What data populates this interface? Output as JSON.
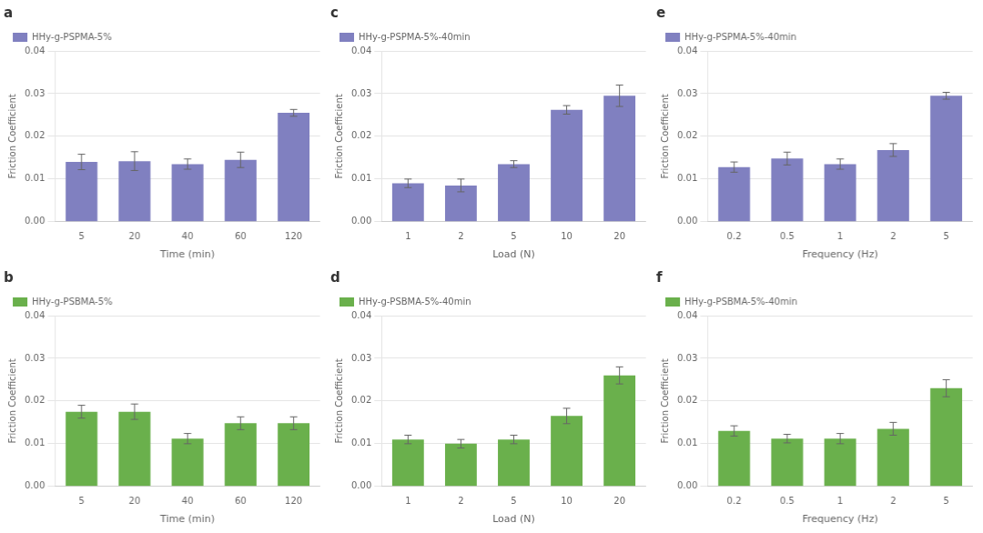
{
  "chart_data": [
    {
      "type": "bar",
      "title": "a",
      "xlabel": "Time (min)",
      "ylabel": "Friction Coefficient",
      "categories": [
        "5",
        "20",
        "40",
        "60",
        "120"
      ],
      "series": [
        {
          "name": "HHy-g-PSPMA-5%",
          "color": "#8080c0",
          "values": [
            0.014,
            0.0142,
            0.0135,
            0.0145,
            0.0255
          ],
          "errors": [
            0.0018,
            0.0022,
            0.0012,
            0.0018,
            0.0008
          ]
        }
      ],
      "ylim": [
        0,
        0.04
      ],
      "yticks": [
        {
          "value": 0,
          "label": "0.00"
        },
        0.01,
        0.02,
        0.03,
        0.04
      ],
      "grid": true,
      "legend": "upper left"
    },
    {
      "type": "bar",
      "title": "c",
      "xlabel": "Load (N)",
      "ylabel": "Friction Coefficient",
      "categories": [
        "1",
        "2",
        "5",
        "10",
        "20"
      ],
      "series": [
        {
          "name": "HHy-g-PSPMA-5%-40min",
          "color": "#8080c0",
          "values": [
            0.009,
            0.0085,
            0.0135,
            0.0262,
            0.0295
          ],
          "errors": [
            0.001,
            0.0015,
            0.0008,
            0.001,
            0.0025
          ]
        }
      ],
      "ylim": [
        0,
        0.04
      ],
      "yticks": [
        {
          "value": 0,
          "label": "0.00"
        },
        0.01,
        0.02,
        0.03,
        0.04
      ],
      "grid": true,
      "legend": "upper left"
    },
    {
      "type": "bar",
      "title": "e",
      "xlabel": "Frequency (Hz)",
      "ylabel": "Friction Coefficient",
      "categories": [
        "0.2",
        "0.5",
        "1",
        "2",
        "5"
      ],
      "series": [
        {
          "name": "HHy-g-PSPMA-5%-40min",
          "color": "#8080c0",
          "values": [
            0.0128,
            0.0148,
            0.0135,
            0.0168,
            0.0295
          ],
          "errors": [
            0.0012,
            0.0015,
            0.0012,
            0.0015,
            0.0008
          ]
        }
      ],
      "ylim": [
        0,
        0.04
      ],
      "yticks": [
        {
          "value": 0,
          "label": "0.00"
        },
        0.01,
        0.02,
        0.03,
        0.04
      ],
      "grid": true,
      "legend": "upper left"
    },
    {
      "type": "bar",
      "title": "b",
      "xlabel": "Time (min)",
      "ylabel": "Friction Coefficient",
      "categories": [
        "5",
        "20",
        "40",
        "60",
        "120"
      ],
      "series": [
        {
          "name": "HHy-g-PSBMA-5%",
          "color": "#6ab04c",
          "values": [
            0.0175,
            0.0175,
            0.0112,
            0.0148,
            0.0148
          ],
          "errors": [
            0.0015,
            0.0018,
            0.0012,
            0.0015,
            0.0015
          ]
        }
      ],
      "ylim": [
        0,
        0.04
      ],
      "yticks": [
        {
          "value": 0,
          "label": "0.00"
        },
        0.01,
        0.02,
        0.03,
        0.04
      ],
      "grid": true,
      "legend": "upper left"
    },
    {
      "type": "bar",
      "title": "d",
      "xlabel": "Load (N)",
      "ylabel": "Friction Coefficient",
      "categories": [
        "1",
        "2",
        "5",
        "10",
        "20"
      ],
      "series": [
        {
          "name": "HHy-g-PSBMA-5%-40min",
          "color": "#6ab04c",
          "values": [
            0.011,
            0.01,
            0.011,
            0.0165,
            0.026
          ],
          "errors": [
            0.001,
            0.001,
            0.001,
            0.0018,
            0.002
          ]
        }
      ],
      "ylim": [
        0,
        0.04
      ],
      "yticks": [
        {
          "value": 0,
          "label": "0.00"
        },
        0.01,
        0.02,
        0.03,
        0.04
      ],
      "grid": true,
      "legend": "upper left"
    },
    {
      "type": "bar",
      "title": "f",
      "xlabel": "Frequency (Hz)",
      "ylabel": "Friction Coefficient",
      "categories": [
        "0.2",
        "0.5",
        "1",
        "2",
        "5"
      ],
      "series": [
        {
          "name": "HHy-g-PSBMA-5%-40min",
          "color": "#6ab04c",
          "values": [
            0.013,
            0.0112,
            0.0112,
            0.0135,
            0.023
          ],
          "errors": [
            0.0012,
            0.001,
            0.0012,
            0.0015,
            0.002
          ]
        }
      ],
      "ylim": [
        0,
        0.04
      ],
      "yticks": [
        {
          "value": 0,
          "label": "0.00"
        },
        0.01,
        0.02,
        0.03,
        0.04
      ],
      "grid": true,
      "legend": "upper left"
    }
  ]
}
